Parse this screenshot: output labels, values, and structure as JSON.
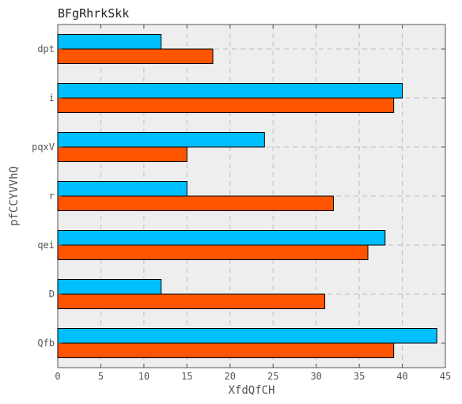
{
  "chart_data": {
    "type": "bar",
    "orientation": "horizontal",
    "title": "BFgRhrkSkk",
    "xlabel": "XfdQfCH",
    "ylabel": "pfCCYVVhQ",
    "categories": [
      "dpt",
      "i",
      "pqxV",
      "r",
      "qei",
      "D",
      "Qfb"
    ],
    "xlim": [
      0,
      45
    ],
    "xticks": [
      "0",
      "5",
      "10",
      "15",
      "20",
      "25",
      "30",
      "35",
      "40",
      "45"
    ],
    "grid": true,
    "legend": "none",
    "series": [
      {
        "color": "#00bfff",
        "values": [
          12,
          40,
          24,
          15,
          38,
          12,
          44
        ]
      },
      {
        "color": "#ff5500",
        "values": [
          18,
          39,
          15,
          32,
          36,
          31,
          39
        ]
      }
    ]
  }
}
